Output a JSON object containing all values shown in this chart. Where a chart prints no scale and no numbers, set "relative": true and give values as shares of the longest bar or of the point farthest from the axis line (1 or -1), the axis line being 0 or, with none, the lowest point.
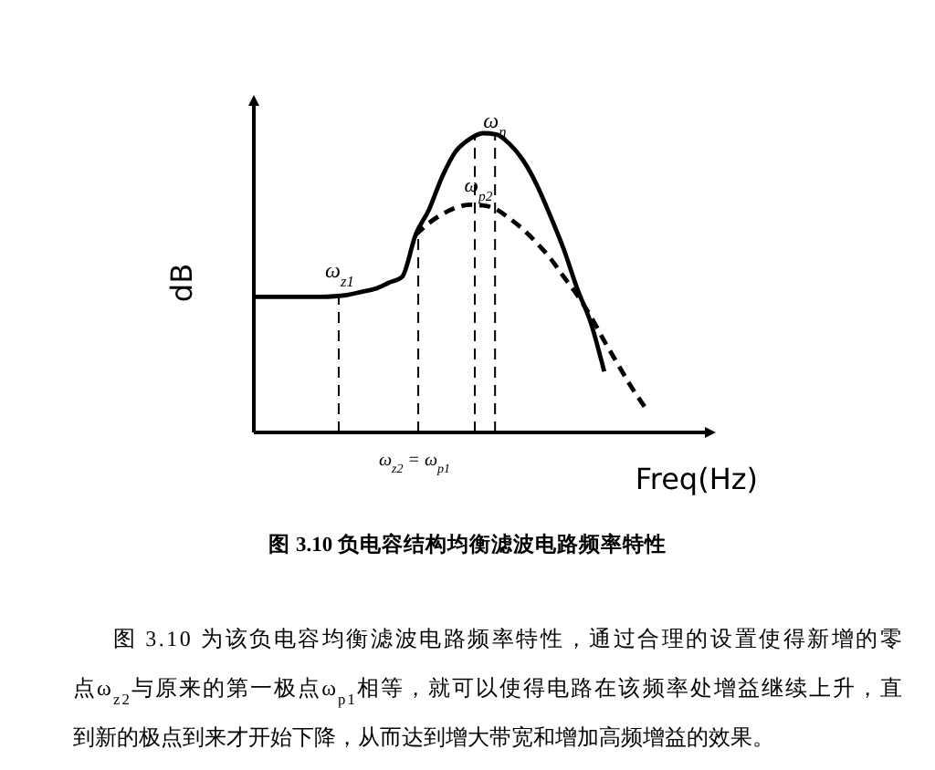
{
  "chart_data": {
    "type": "line",
    "title": "图 3.10 负电容结构均衡滤波电路频率特性",
    "xlabel": "Freq(Hz)",
    "ylabel": "dB",
    "relative": true,
    "marker": "none",
    "categories": [
      null,
      null,
      null,
      null,
      null,
      null,
      null,
      null,
      null,
      null,
      null,
      null,
      null,
      null,
      null,
      null,
      null,
      null,
      null,
      null,
      null,
      null,
      null,
      null,
      null,
      null,
      null,
      null,
      null,
      null
    ],
    "series": [
      {
        "color": "#000000",
        "line_style": "solid",
        "values": [
          0.453,
          0.453,
          0.453,
          0.453,
          0.453,
          0.453,
          0.455,
          0.46,
          0.47,
          0.48,
          0.5,
          0.52,
          0.66,
          0.745,
          0.857,
          0.94,
          0.98,
          1.0,
          0.996,
          0.963,
          0.908,
          0.827,
          0.724,
          0.612,
          0.48,
          0.367,
          0.204,
          null,
          null,
          null
        ]
      },
      {
        "color": "#000000",
        "line_style": "dashed",
        "values": [
          null,
          null,
          null,
          null,
          null,
          null,
          null,
          null,
          null,
          null,
          null,
          null,
          0.66,
          0.7,
          0.73,
          0.751,
          0.761,
          0.759,
          0.745,
          0.714,
          0.678,
          0.633,
          0.582,
          0.52,
          0.459,
          0.388,
          0.306,
          0.229,
          0.153,
          0.086
        ]
      }
    ],
    "annotations": [
      "ω$_{z1}$",
      "ω$_{n}$",
      "ω$_{p2}$",
      "ω$_{z2}$ = ω$_{p1}$",
      "图 3.10 为该负电容均衡滤波电路频率特性，通过合理的设置使得新增的零",
      "点ω$_{z2}$与原来的第一极点ω$_{p1}$相等，就可以使得电路在该频率处增益继续上升，直",
      "到新的极点到来才开始下降，从而达到增大带宽和增加高频增益的效果。"
    ]
  }
}
